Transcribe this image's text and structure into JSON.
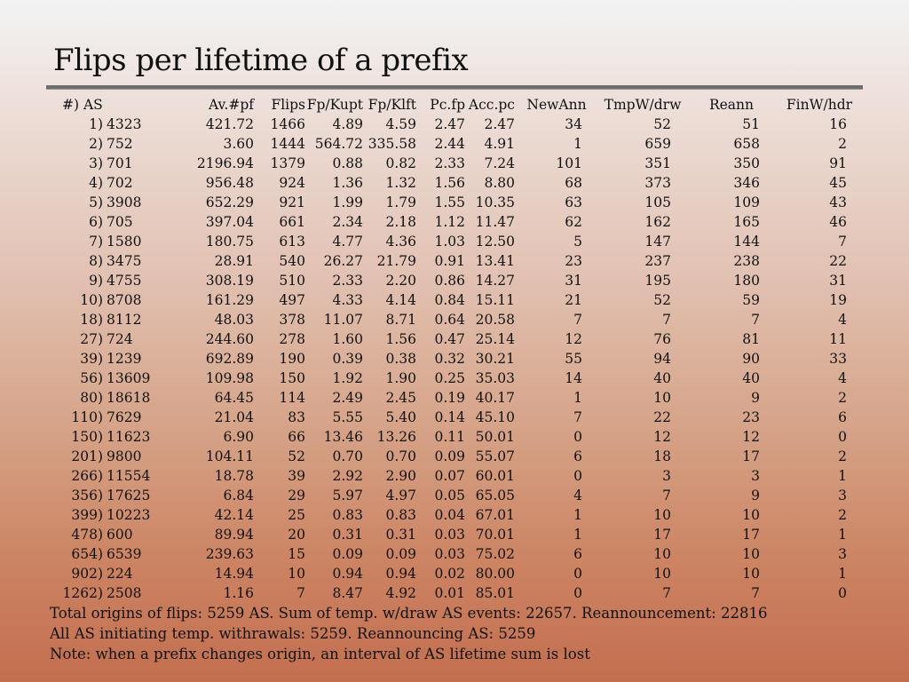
{
  "title": "Flips per lifetime of a prefix",
  "headers": {
    "rank_as": "#) AS",
    "avpf": "Av.#pf",
    "flips": "Flips",
    "fp_kupt": "Fp/Kupt",
    "fp_klft": "Fp/Klft",
    "pcfp": "Pc.fp",
    "accpc": "Acc.pc",
    "newann": "NewAnn",
    "tmpw": "TmpW/drw",
    "reann": "Reann",
    "finw": "FinW/hdr"
  },
  "rows": [
    {
      "rank": "1)",
      "as": "4323",
      "avpf": "421.72",
      "flips": "1466",
      "fp_kupt": "4.89",
      "fp_klft": "4.59",
      "pcfp": "2.47",
      "accpc": "2.47",
      "newann": "34",
      "tmpw": "52",
      "reann": "51",
      "finw": "16"
    },
    {
      "rank": "2)",
      "as": "752",
      "avpf": "3.60",
      "flips": "1444",
      "fp_kupt": "564.72",
      "fp_klft": "335.58",
      "pcfp": "2.44",
      "accpc": "4.91",
      "newann": "1",
      "tmpw": "659",
      "reann": "658",
      "finw": "2"
    },
    {
      "rank": "3)",
      "as": "701",
      "avpf": "2196.94",
      "flips": "1379",
      "fp_kupt": "0.88",
      "fp_klft": "0.82",
      "pcfp": "2.33",
      "accpc": "7.24",
      "newann": "101",
      "tmpw": "351",
      "reann": "350",
      "finw": "91"
    },
    {
      "rank": "4)",
      "as": "702",
      "avpf": "956.48",
      "flips": "924",
      "fp_kupt": "1.36",
      "fp_klft": "1.32",
      "pcfp": "1.56",
      "accpc": "8.80",
      "newann": "68",
      "tmpw": "373",
      "reann": "346",
      "finw": "45"
    },
    {
      "rank": "5)",
      "as": "3908",
      "avpf": "652.29",
      "flips": "921",
      "fp_kupt": "1.99",
      "fp_klft": "1.79",
      "pcfp": "1.55",
      "accpc": "10.35",
      "newann": "63",
      "tmpw": "105",
      "reann": "109",
      "finw": "43"
    },
    {
      "rank": "6)",
      "as": "705",
      "avpf": "397.04",
      "flips": "661",
      "fp_kupt": "2.34",
      "fp_klft": "2.18",
      "pcfp": "1.12",
      "accpc": "11.47",
      "newann": "62",
      "tmpw": "162",
      "reann": "165",
      "finw": "46"
    },
    {
      "rank": "7)",
      "as": "1580",
      "avpf": "180.75",
      "flips": "613",
      "fp_kupt": "4.77",
      "fp_klft": "4.36",
      "pcfp": "1.03",
      "accpc": "12.50",
      "newann": "5",
      "tmpw": "147",
      "reann": "144",
      "finw": "7"
    },
    {
      "rank": "8)",
      "as": "3475",
      "avpf": "28.91",
      "flips": "540",
      "fp_kupt": "26.27",
      "fp_klft": "21.79",
      "pcfp": "0.91",
      "accpc": "13.41",
      "newann": "23",
      "tmpw": "237",
      "reann": "238",
      "finw": "22"
    },
    {
      "rank": "9)",
      "as": "4755",
      "avpf": "308.19",
      "flips": "510",
      "fp_kupt": "2.33",
      "fp_klft": "2.20",
      "pcfp": "0.86",
      "accpc": "14.27",
      "newann": "31",
      "tmpw": "195",
      "reann": "180",
      "finw": "31"
    },
    {
      "rank": "10)",
      "as": "8708",
      "avpf": "161.29",
      "flips": "497",
      "fp_kupt": "4.33",
      "fp_klft": "4.14",
      "pcfp": "0.84",
      "accpc": "15.11",
      "newann": "21",
      "tmpw": "52",
      "reann": "59",
      "finw": "19"
    },
    {
      "rank": "18)",
      "as": "8112",
      "avpf": "48.03",
      "flips": "378",
      "fp_kupt": "11.07",
      "fp_klft": "8.71",
      "pcfp": "0.64",
      "accpc": "20.58",
      "newann": "7",
      "tmpw": "7",
      "reann": "7",
      "finw": "4"
    },
    {
      "rank": "27)",
      "as": "724",
      "avpf": "244.60",
      "flips": "278",
      "fp_kupt": "1.60",
      "fp_klft": "1.56",
      "pcfp": "0.47",
      "accpc": "25.14",
      "newann": "12",
      "tmpw": "76",
      "reann": "81",
      "finw": "11"
    },
    {
      "rank": "39)",
      "as": "1239",
      "avpf": "692.89",
      "flips": "190",
      "fp_kupt": "0.39",
      "fp_klft": "0.38",
      "pcfp": "0.32",
      "accpc": "30.21",
      "newann": "55",
      "tmpw": "94",
      "reann": "90",
      "finw": "33"
    },
    {
      "rank": "56)",
      "as": "13609",
      "avpf": "109.98",
      "flips": "150",
      "fp_kupt": "1.92",
      "fp_klft": "1.90",
      "pcfp": "0.25",
      "accpc": "35.03",
      "newann": "14",
      "tmpw": "40",
      "reann": "40",
      "finw": "4"
    },
    {
      "rank": "80)",
      "as": "18618",
      "avpf": "64.45",
      "flips": "114",
      "fp_kupt": "2.49",
      "fp_klft": "2.45",
      "pcfp": "0.19",
      "accpc": "40.17",
      "newann": "1",
      "tmpw": "10",
      "reann": "9",
      "finw": "2"
    },
    {
      "rank": "110)",
      "as": "7629",
      "avpf": "21.04",
      "flips": "83",
      "fp_kupt": "5.55",
      "fp_klft": "5.40",
      "pcfp": "0.14",
      "accpc": "45.10",
      "newann": "7",
      "tmpw": "22",
      "reann": "23",
      "finw": "6"
    },
    {
      "rank": "150)",
      "as": "11623",
      "avpf": "6.90",
      "flips": "66",
      "fp_kupt": "13.46",
      "fp_klft": "13.26",
      "pcfp": "0.11",
      "accpc": "50.01",
      "newann": "0",
      "tmpw": "12",
      "reann": "12",
      "finw": "0"
    },
    {
      "rank": "201)",
      "as": "9800",
      "avpf": "104.11",
      "flips": "52",
      "fp_kupt": "0.70",
      "fp_klft": "0.70",
      "pcfp": "0.09",
      "accpc": "55.07",
      "newann": "6",
      "tmpw": "18",
      "reann": "17",
      "finw": "2"
    },
    {
      "rank": "266)",
      "as": "11554",
      "avpf": "18.78",
      "flips": "39",
      "fp_kupt": "2.92",
      "fp_klft": "2.90",
      "pcfp": "0.07",
      "accpc": "60.01",
      "newann": "0",
      "tmpw": "3",
      "reann": "3",
      "finw": "1"
    },
    {
      "rank": "356)",
      "as": "17625",
      "avpf": "6.84",
      "flips": "29",
      "fp_kupt": "5.97",
      "fp_klft": "4.97",
      "pcfp": "0.05",
      "accpc": "65.05",
      "newann": "4",
      "tmpw": "7",
      "reann": "9",
      "finw": "3"
    },
    {
      "rank": "399)",
      "as": "10223",
      "avpf": "42.14",
      "flips": "25",
      "fp_kupt": "0.83",
      "fp_klft": "0.83",
      "pcfp": "0.04",
      "accpc": "67.01",
      "newann": "1",
      "tmpw": "10",
      "reann": "10",
      "finw": "2"
    },
    {
      "rank": "478)",
      "as": "600",
      "avpf": "89.94",
      "flips": "20",
      "fp_kupt": "0.31",
      "fp_klft": "0.31",
      "pcfp": "0.03",
      "accpc": "70.01",
      "newann": "1",
      "tmpw": "17",
      "reann": "17",
      "finw": "1"
    },
    {
      "rank": "654)",
      "as": "6539",
      "avpf": "239.63",
      "flips": "15",
      "fp_kupt": "0.09",
      "fp_klft": "0.09",
      "pcfp": "0.03",
      "accpc": "75.02",
      "newann": "6",
      "tmpw": "10",
      "reann": "10",
      "finw": "3"
    },
    {
      "rank": "902)",
      "as": "224",
      "avpf": "14.94",
      "flips": "10",
      "fp_kupt": "0.94",
      "fp_klft": "0.94",
      "pcfp": "0.02",
      "accpc": "80.00",
      "newann": "0",
      "tmpw": "10",
      "reann": "10",
      "finw": "1"
    },
    {
      "rank": "1262)",
      "as": "2508",
      "avpf": "1.16",
      "flips": "7",
      "fp_kupt": "8.47",
      "fp_klft": "4.92",
      "pcfp": "0.01",
      "accpc": "85.01",
      "newann": "0",
      "tmpw": "7",
      "reann": "7",
      "finw": "0"
    }
  ],
  "footer": {
    "line1": "Total origins of flips: 5259 AS.  Sum of temp. w/draw AS events:  22657. Reannouncement:  22816",
    "line2": "All AS initiating temp. withrawals: 5259. Reannouncing AS: 5259",
    "line3": "Note: when a prefix changes origin, an interval of AS lifetime sum is lost"
  }
}
